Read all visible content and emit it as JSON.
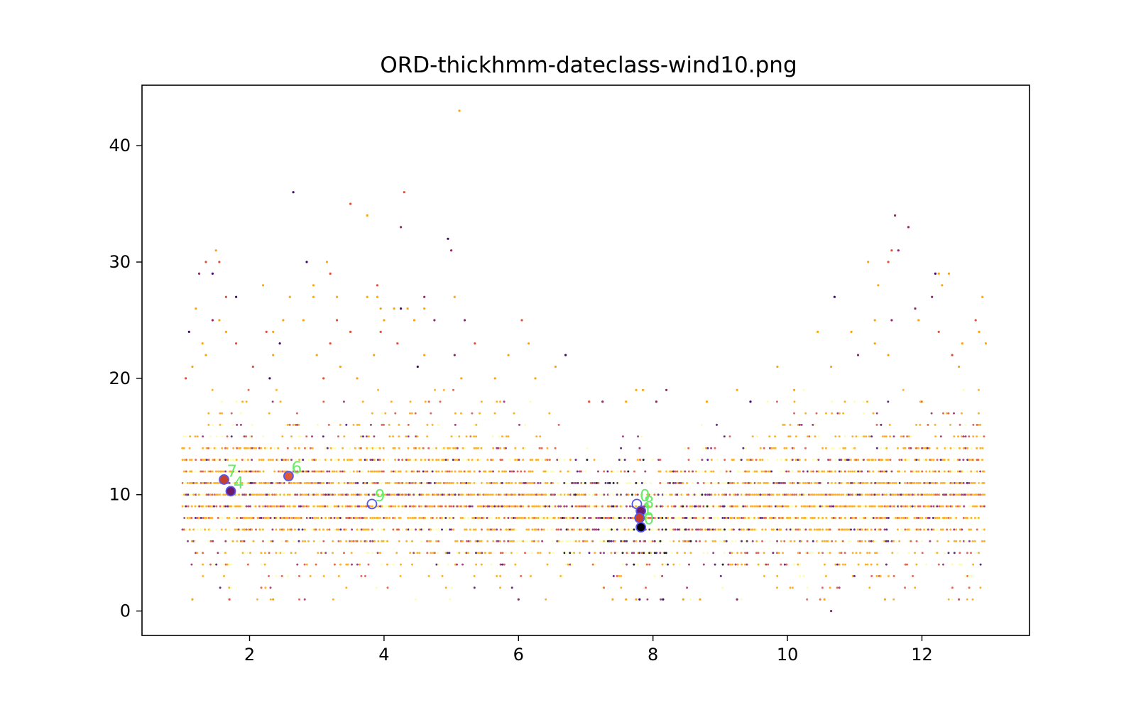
{
  "chart_data": {
    "type": "scatter",
    "title": "ORD-thickhmm-dateclass-wind10.png",
    "xlabel": "",
    "ylabel": "",
    "xlim": [
      0.4,
      13.6
    ],
    "ylim": [
      -2.1,
      45.2
    ],
    "xticks": [
      2,
      4,
      6,
      8,
      10,
      12
    ],
    "yticks": [
      0,
      10,
      20,
      30,
      40
    ],
    "grid": false,
    "colormap": [
      "#000004",
      "#420a68",
      "#932667",
      "#dd513a",
      "#fca50a",
      "#fcffa4"
    ],
    "point_cloud": {
      "description_source": "dense hourly scatter",
      "x_range": [
        1.0,
        12.95
      ],
      "y_levels_min": 1,
      "y_levels_max": 19,
      "outliers": [
        [
          5.12,
          43
        ],
        [
          2.65,
          36
        ],
        [
          4.3,
          36
        ],
        [
          3.5,
          35
        ],
        [
          3.75,
          34
        ],
        [
          11.6,
          34
        ],
        [
          4.25,
          33
        ],
        [
          11.8,
          33
        ],
        [
          4.95,
          32
        ],
        [
          5.0,
          31
        ],
        [
          1.5,
          31
        ],
        [
          11.55,
          31
        ],
        [
          11.65,
          31
        ],
        [
          1.35,
          30
        ],
        [
          1.55,
          30
        ],
        [
          2.85,
          30
        ],
        [
          3.15,
          30
        ],
        [
          11.2,
          30
        ],
        [
          11.5,
          30
        ],
        [
          1.25,
          29
        ],
        [
          1.45,
          29
        ],
        [
          3.2,
          29
        ],
        [
          12.2,
          29
        ],
        [
          12.25,
          29
        ],
        [
          12.4,
          29
        ],
        [
          2.2,
          28
        ],
        [
          2.95,
          28
        ],
        [
          3.9,
          28
        ],
        [
          11.35,
          28
        ],
        [
          12.3,
          28
        ],
        [
          1.65,
          27
        ],
        [
          1.8,
          27
        ],
        [
          2.6,
          27
        ],
        [
          2.95,
          27
        ],
        [
          3.3,
          27
        ],
        [
          3.75,
          27
        ],
        [
          3.9,
          27
        ],
        [
          4.6,
          27
        ],
        [
          5.05,
          27
        ],
        [
          10.7,
          27
        ],
        [
          12.15,
          27
        ],
        [
          12.9,
          27
        ],
        [
          1.2,
          26
        ],
        [
          3.95,
          26
        ],
        [
          4.15,
          26
        ],
        [
          4.25,
          26
        ],
        [
          4.35,
          26
        ],
        [
          4.6,
          26
        ],
        [
          11.9,
          26
        ],
        [
          1.45,
          25
        ],
        [
          1.55,
          25
        ],
        [
          2.5,
          25
        ],
        [
          2.8,
          25
        ],
        [
          3.3,
          25
        ],
        [
          4.0,
          25
        ],
        [
          4.45,
          25
        ],
        [
          4.75,
          25
        ],
        [
          5.2,
          25
        ],
        [
          6.05,
          25
        ],
        [
          11.3,
          25
        ],
        [
          11.55,
          25
        ],
        [
          11.95,
          25
        ],
        [
          12.8,
          25
        ],
        [
          1.1,
          24
        ],
        [
          1.65,
          24
        ],
        [
          2.25,
          24
        ],
        [
          2.35,
          24
        ],
        [
          3.5,
          24
        ],
        [
          3.95,
          24
        ],
        [
          10.45,
          24
        ],
        [
          10.95,
          24
        ],
        [
          12.25,
          24
        ],
        [
          12.85,
          24
        ],
        [
          1.3,
          23
        ],
        [
          1.8,
          23
        ],
        [
          2.45,
          23
        ],
        [
          3.2,
          23
        ],
        [
          4.2,
          23
        ],
        [
          5.35,
          23
        ],
        [
          6.15,
          23
        ],
        [
          11.3,
          23
        ],
        [
          12.6,
          23
        ],
        [
          12.95,
          23
        ],
        [
          1.35,
          22
        ],
        [
          2.35,
          22
        ],
        [
          3.0,
          22
        ],
        [
          3.85,
          22
        ],
        [
          4.6,
          22
        ],
        [
          5.05,
          22
        ],
        [
          5.85,
          22
        ],
        [
          6.7,
          22
        ],
        [
          11.05,
          22
        ],
        [
          11.5,
          22
        ],
        [
          12.45,
          22
        ],
        [
          1.15,
          21
        ],
        [
          2.05,
          21
        ],
        [
          3.35,
          21
        ],
        [
          4.5,
          21
        ],
        [
          6.55,
          21
        ],
        [
          9.85,
          21
        ],
        [
          10.65,
          21
        ],
        [
          12.55,
          21
        ],
        [
          1.05,
          20
        ],
        [
          2.3,
          20
        ],
        [
          3.1,
          20
        ],
        [
          3.6,
          20
        ],
        [
          5.15,
          20
        ],
        [
          5.65,
          20
        ],
        [
          6.25,
          20
        ],
        [
          8.2,
          19
        ],
        [
          7.75,
          19
        ],
        [
          7.85,
          19
        ],
        [
          9.25,
          19
        ],
        [
          10.1,
          19
        ],
        [
          7.05,
          18
        ],
        [
          7.25,
          18
        ],
        [
          7.6,
          18
        ],
        [
          8.05,
          18
        ],
        [
          8.8,
          18
        ],
        [
          9.45,
          18
        ],
        [
          7.6,
          1
        ],
        [
          7.4,
          1
        ],
        [
          7.75,
          1
        ],
        [
          7.8,
          1
        ],
        [
          8.15,
          1
        ],
        [
          8.45,
          1
        ],
        [
          8.7,
          1
        ],
        [
          9.25,
          1
        ],
        [
          6.0,
          1
        ],
        [
          1.7,
          1
        ],
        [
          1.15,
          1
        ],
        [
          2.35,
          1
        ],
        [
          10.55,
          1
        ],
        [
          11.45,
          1
        ],
        [
          12.55,
          1
        ],
        [
          10.65,
          0
        ]
      ]
    },
    "highlights": [
      {
        "label": "7",
        "x": 1.62,
        "y": 11.3
      },
      {
        "label": "4",
        "x": 1.72,
        "y": 10.3
      },
      {
        "label": "6",
        "x": 2.58,
        "y": 11.6
      },
      {
        "label": "9",
        "x": 3.82,
        "y": 9.2
      },
      {
        "label": "0",
        "x": 7.76,
        "y": 9.2
      },
      {
        "label": "8",
        "x": 7.82,
        "y": 8.6
      },
      {
        "label": "1",
        "x": 7.8,
        "y": 8.0
      },
      {
        "label": "0",
        "x": 7.82,
        "y": 7.2
      }
    ]
  }
}
